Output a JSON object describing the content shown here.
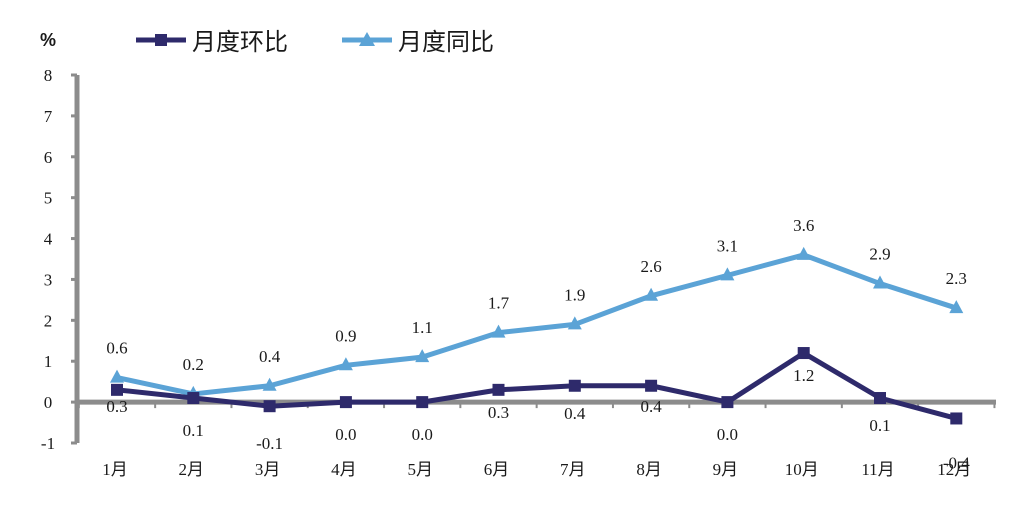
{
  "chart_data": {
    "type": "line",
    "ylabel": "%",
    "ylim": [
      -1,
      8
    ],
    "yticks": [
      "-1",
      "0",
      "1",
      "2",
      "3",
      "4",
      "5",
      "6",
      "7",
      "8"
    ],
    "categories": [
      "1月",
      "2月",
      "3月",
      "4月",
      "5月",
      "6月",
      "7月",
      "8月",
      "9月",
      "10月",
      "11月",
      "12月"
    ],
    "legend_position": "top-left",
    "grid": false,
    "series": [
      {
        "name": "月度环比",
        "color": "#2e2a6b",
        "marker": "square",
        "values": [
          0.3,
          0.1,
          -0.1,
          0.0,
          0.0,
          0.3,
          0.4,
          0.4,
          0.0,
          1.2,
          0.1,
          -0.4
        ],
        "labels": [
          "0.3",
          "0.1",
          "-0.1",
          "0.0",
          "0.0",
          "0.3",
          "0.4",
          "0.4",
          "0.0",
          "1.2",
          "0.1",
          "-0.4"
        ]
      },
      {
        "name": "月度同比",
        "color": "#5ba3d6",
        "marker": "triangle",
        "values": [
          0.6,
          0.2,
          0.4,
          0.9,
          1.1,
          1.7,
          1.9,
          2.6,
          3.1,
          3.6,
          2.9,
          2.3
        ],
        "labels": [
          "0.6",
          "0.2",
          "0.4",
          "0.9",
          "1.1",
          "1.7",
          "1.9",
          "2.6",
          "3.1",
          "3.6",
          "2.9",
          "2.3"
        ]
      }
    ],
    "axis_color": "#8c8c8c"
  }
}
